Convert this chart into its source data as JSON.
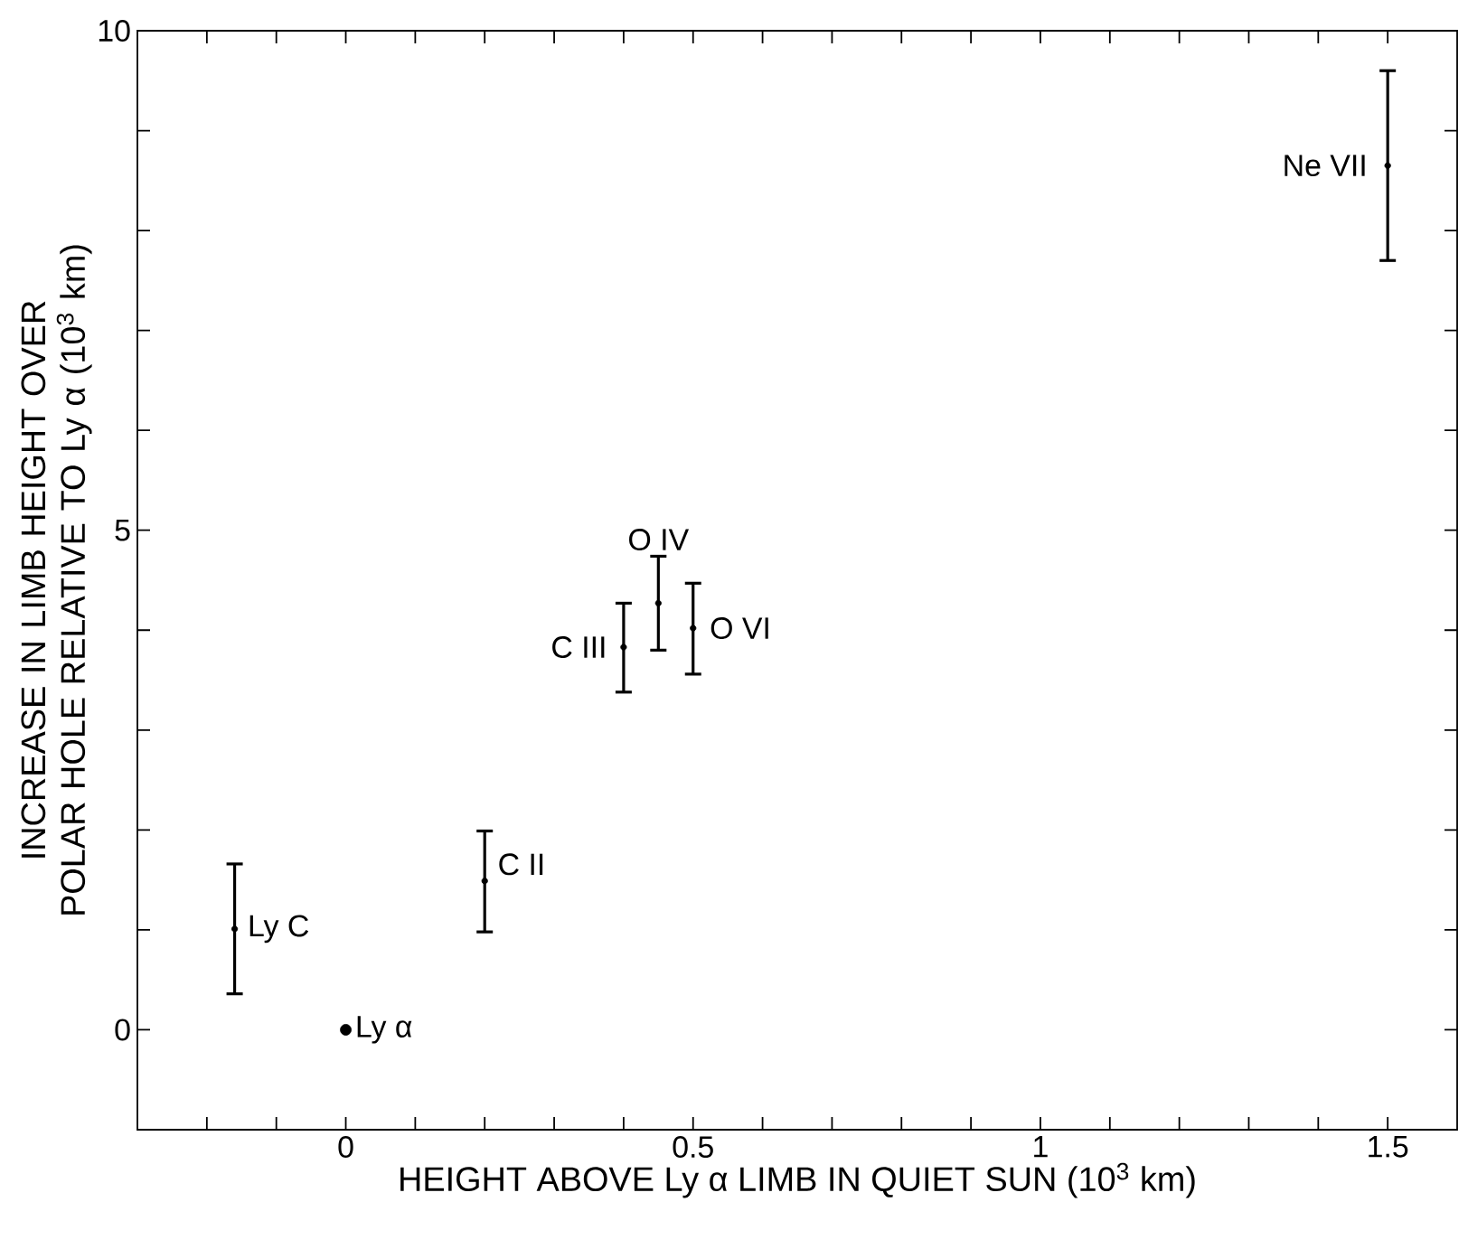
{
  "chart_data": {
    "type": "scatter",
    "xlabel": "HEIGHT ABOVE Ly α LIMB IN QUIET SUN (10$^{3}$ km)",
    "ylabel": "INCREASE IN LIMB HEIGHT OVER POLAR HOLE RELATIVE TO Ly α (10$^{3}$ km)",
    "xlim": [
      -0.3,
      1.6
    ],
    "ylim": [
      -1,
      10
    ],
    "xticks": [
      {
        "value": -0.2,
        "label": null
      },
      {
        "value": -0.1,
        "label": null
      },
      0,
      {
        "value": 0.1,
        "label": null
      },
      {
        "value": 0.2,
        "label": null
      },
      {
        "value": 0.3,
        "label": null
      },
      {
        "value": 0.4,
        "label": null
      },
      0.5,
      {
        "value": 0.6,
        "label": null
      },
      {
        "value": 0.7,
        "label": null
      },
      {
        "value": 0.8,
        "label": null
      },
      {
        "value": 0.9,
        "label": null
      },
      1,
      {
        "value": 1.1,
        "label": null
      },
      {
        "value": 1.2,
        "label": null
      },
      {
        "value": 1.3,
        "label": null
      },
      {
        "value": 1.4,
        "label": null
      },
      1.5
    ],
    "yticks": [
      0,
      {
        "value": 1,
        "label": null
      },
      {
        "value": 2,
        "label": null
      },
      {
        "value": 3,
        "label": null
      },
      {
        "value": 4,
        "label": null
      },
      5,
      {
        "value": 6,
        "label": null
      },
      {
        "value": 7,
        "label": null
      },
      {
        "value": 8,
        "label": null
      },
      {
        "value": 9,
        "label": null
      },
      10
    ],
    "grid": false,
    "series": [
      {
        "color": "#000000",
        "marker": "circle",
        "x": [
          -0.16,
          0.2,
          0.4,
          0.45,
          0.5,
          1.5
        ],
        "values": [
          1.01,
          1.49,
          3.83,
          4.27,
          4.02,
          8.65
        ],
        "errors": [
          [
            0.36,
            1.66
          ],
          [
            0.98,
            1.99
          ],
          [
            3.38,
            4.27
          ],
          [
            3.8,
            4.74
          ],
          [
            3.56,
            4.47
          ],
          [
            7.7,
            9.6
          ]
        ]
      },
      {
        "color": "#000000",
        "marker": "circle",
        "x": [
          0
        ],
        "values": [
          0
        ]
      }
    ],
    "annotations": [
      {
        "text": "Ly C",
        "x": -0.16,
        "y": 1.01
      },
      {
        "text": "C II",
        "x": 0.2,
        "y": 1.49
      },
      {
        "text": "C III",
        "x": 0.4,
        "y": 3.83
      },
      {
        "text": "O IV",
        "x": 0.45,
        "y": 4.27
      },
      {
        "text": "O VI",
        "x": 0.5,
        "y": 4.02
      },
      {
        "text": "Ne VII",
        "x": 1.5,
        "y": 8.65
      },
      {
        "text": "Ly α",
        "x": 0,
        "y": 0
      }
    ]
  }
}
